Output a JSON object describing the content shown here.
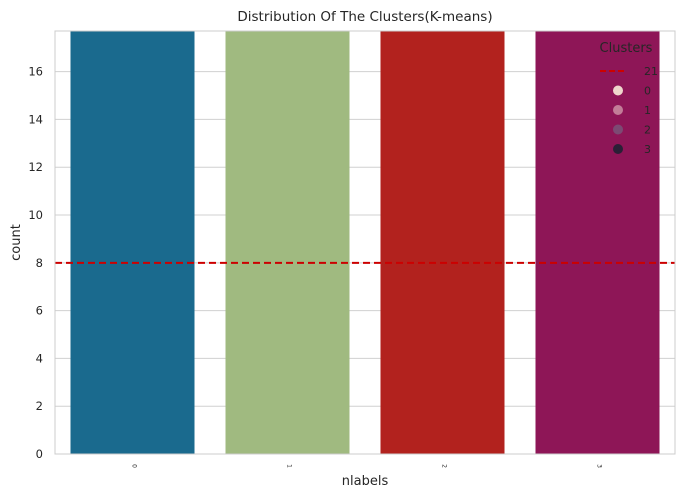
{
  "chart_data": {
    "type": "bar",
    "title": "Distribution Of The Clusters(K-means)",
    "xlabel": "nlabels",
    "ylabel": "count",
    "categories": [
      "0",
      "1",
      "2",
      "3"
    ],
    "values": [
      17.7,
      17.7,
      17.7,
      17.7
    ],
    "bar_colors": [
      "#1a6a8e",
      "#a0ba80",
      "#b2221e",
      "#8e1657"
    ],
    "ylim": [
      0,
      17.7
    ],
    "yticks": [
      0,
      2,
      4,
      6,
      8,
      10,
      12,
      14,
      16
    ],
    "grid": true,
    "reference_line": {
      "y": 8,
      "color": "#cc0000",
      "style": "dashed",
      "label": "21"
    },
    "legend": {
      "title": "Clusters",
      "placement": "top-right",
      "entries": [
        {
          "label": "21",
          "kind": "line",
          "color": "#cc0000"
        },
        {
          "label": "0",
          "kind": "dot",
          "color": "#efd6cc"
        },
        {
          "label": "1",
          "kind": "dot",
          "color": "#c27d98"
        },
        {
          "label": "2",
          "kind": "dot",
          "color": "#7c4a73"
        },
        {
          "label": "3",
          "kind": "dot",
          "color": "#2a1f36"
        }
      ]
    }
  }
}
